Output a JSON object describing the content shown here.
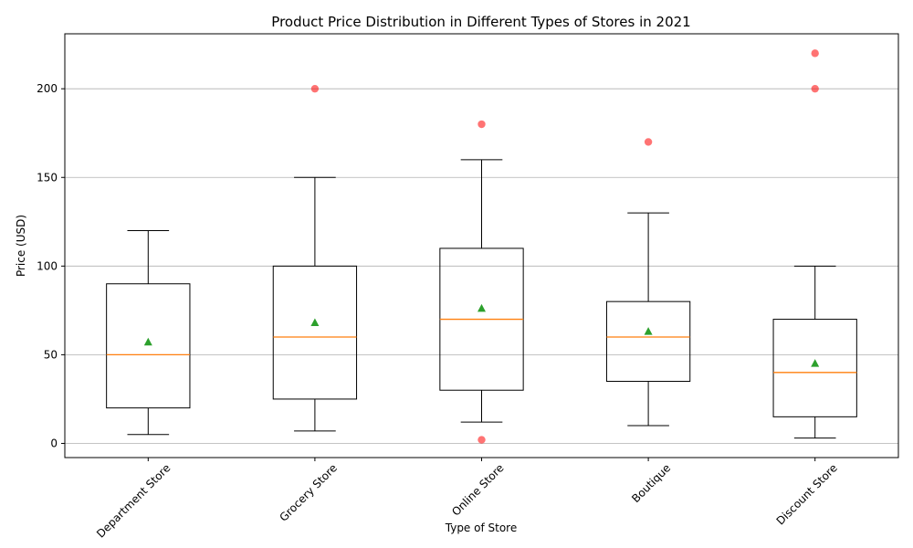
{
  "chart_data": {
    "type": "boxplot",
    "title": "Product Price Distribution in Different Types of Stores in 2021",
    "xlabel": "Type of Store",
    "ylabel": "Price (USD)",
    "ylim": [
      -8,
      231
    ],
    "yticks": [
      0,
      50,
      100,
      150,
      200
    ],
    "grid": "y",
    "categories": [
      "Department Store",
      "Grocery Store",
      "Online Store",
      "Boutique",
      "Discount Store"
    ],
    "boxes": [
      {
        "whisker_low": 5,
        "q1": 20,
        "median": 50,
        "q3": 90,
        "whisker_high": 120,
        "mean": 57,
        "outliers": []
      },
      {
        "whisker_low": 7,
        "q1": 25,
        "median": 60,
        "q3": 100,
        "whisker_high": 150,
        "mean": 68,
        "outliers": [
          200
        ]
      },
      {
        "whisker_low": 12,
        "q1": 30,
        "median": 70,
        "q3": 110,
        "whisker_high": 160,
        "mean": 76,
        "outliers": [
          2,
          180
        ]
      },
      {
        "whisker_low": 10,
        "q1": 35,
        "median": 60,
        "q3": 80,
        "whisker_high": 130,
        "mean": 63,
        "outliers": [
          170
        ]
      },
      {
        "whisker_low": 3,
        "q1": 15,
        "median": 40,
        "q3": 70,
        "whisker_high": 100,
        "mean": 45,
        "outliers": [
          200,
          220
        ]
      }
    ],
    "colors": {
      "box": "#000000",
      "median": "#ff7f0e",
      "mean": "#2ca02c",
      "outlier": "#ff0000",
      "grid": "#b0b0b0"
    }
  }
}
